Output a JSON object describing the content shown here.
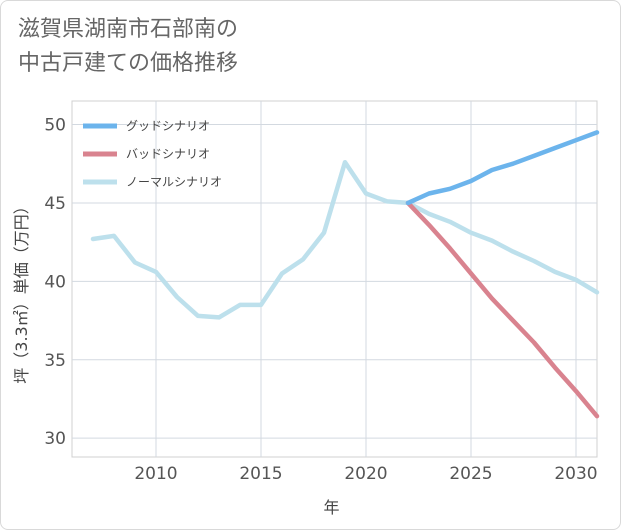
{
  "title_lines": [
    "滋賀県湖南市石部南の",
    "中古戸建ての価格推移"
  ],
  "chart_data": {
    "type": "line",
    "xlabel": "年",
    "ylabel": "坪（3.3㎡）単価（万円）",
    "xlim": [
      2006,
      2031
    ],
    "ylim": [
      28.8,
      51.5
    ],
    "xticks": [
      2010,
      2015,
      2020,
      2025,
      2030
    ],
    "yticks": [
      30,
      35,
      40,
      45,
      50
    ],
    "grid": true,
    "legend_position": "top-left",
    "series": [
      {
        "name": "グッドシナリオ",
        "color": "#6cb4ec",
        "x": [
          2022,
          2023,
          2024,
          2025,
          2026,
          2027,
          2028,
          2029,
          2030,
          2031
        ],
        "values": [
          45.0,
          45.6,
          45.9,
          46.4,
          47.1,
          47.5,
          48.0,
          48.5,
          49.0,
          49.5
        ]
      },
      {
        "name": "バッドシナリオ",
        "color": "#d9838f",
        "x": [
          2022,
          2023,
          2024,
          2025,
          2026,
          2027,
          2028,
          2029,
          2030,
          2031
        ],
        "values": [
          45.0,
          43.6,
          42.1,
          40.5,
          38.9,
          37.5,
          36.1,
          34.5,
          33.0,
          31.4
        ]
      },
      {
        "name": "ノーマルシナリオ",
        "color": "#bde0ec",
        "x": [
          2007,
          2008,
          2009,
          2010,
          2011,
          2012,
          2013,
          2014,
          2015,
          2016,
          2017,
          2018,
          2019,
          2020,
          2021,
          2022,
          2023,
          2024,
          2025,
          2026,
          2027,
          2028,
          2029,
          2030,
          2031
        ],
        "values": [
          42.7,
          42.9,
          41.2,
          40.6,
          39.0,
          37.8,
          37.7,
          38.5,
          38.5,
          40.5,
          41.4,
          43.1,
          47.6,
          45.6,
          45.1,
          45.0,
          44.3,
          43.8,
          43.1,
          42.6,
          41.9,
          41.3,
          40.6,
          40.1,
          39.3
        ]
      }
    ]
  }
}
